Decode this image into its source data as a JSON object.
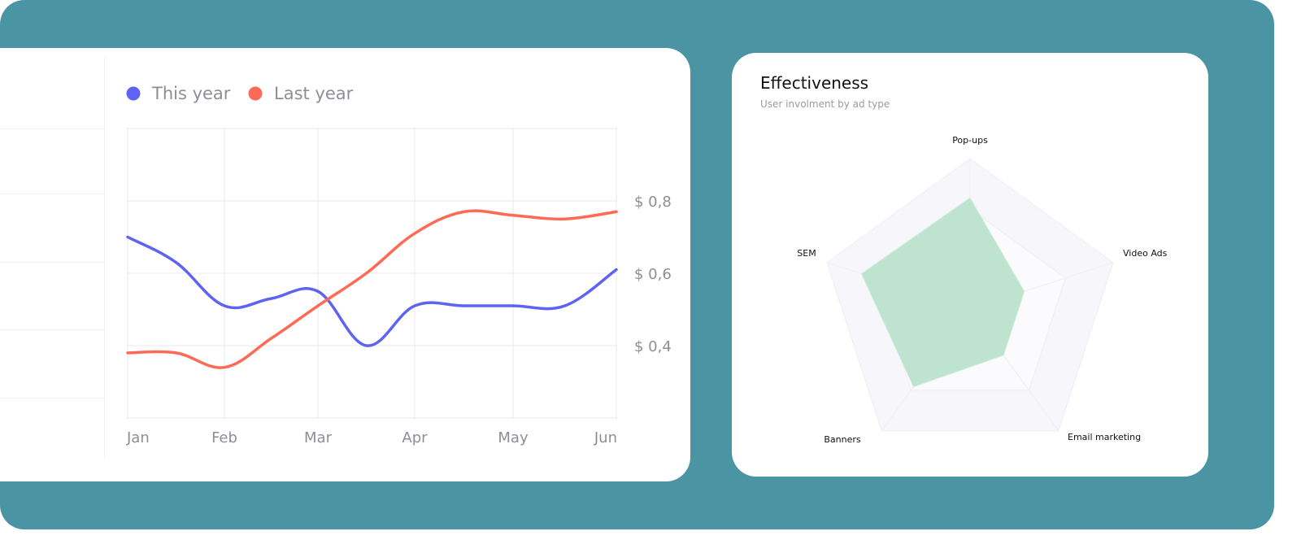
{
  "colors": {
    "background": "#4a94a3",
    "card": "#ffffff",
    "this_year": "#5f63f2",
    "last_year": "#ff6a57",
    "radar_fill": "#b8e2cc",
    "grid": "#e8e8ee"
  },
  "chart_data": [
    {
      "type": "line",
      "legend_position": "top-left",
      "grid": true,
      "categories": [
        "Jan",
        "Feb",
        "Mar",
        "Apr",
        "May",
        "Jun"
      ],
      "y_ticks": [
        {
          "value": 0.8,
          "label": "$ 0,8"
        },
        {
          "value": 0.6,
          "label": "$ 0,6"
        },
        {
          "value": 0.4,
          "label": "$ 0,4"
        }
      ],
      "ylim": [
        0.2,
        1.0
      ],
      "x": [
        0,
        0.5,
        1,
        1.5,
        2,
        2.5,
        3,
        3.5,
        4,
        4.5,
        5
      ],
      "series": [
        {
          "name": "This year",
          "color_key": "this_year",
          "values": [
            0.7,
            0.63,
            0.51,
            0.53,
            0.55,
            0.4,
            0.51,
            0.51,
            0.51,
            0.51,
            0.61
          ]
        },
        {
          "name": "Last year",
          "color_key": "last_year",
          "values": [
            0.38,
            0.38,
            0.34,
            0.42,
            0.51,
            0.6,
            0.71,
            0.77,
            0.76,
            0.75,
            0.77
          ]
        }
      ]
    },
    {
      "type": "radar",
      "title": "Effectiveness",
      "subtitle": "User involment by ad type",
      "max": 100,
      "axes": [
        "Pop-ups",
        "Video Ads",
        "Email marketing",
        "Banners",
        "SEM"
      ],
      "values": [
        74,
        38,
        38,
        64,
        76
      ],
      "grid_levels": 3
    }
  ]
}
